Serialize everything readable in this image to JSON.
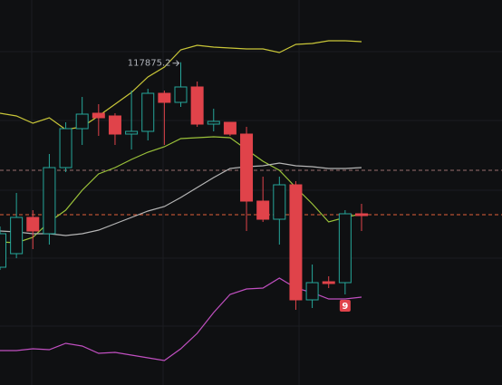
{
  "chart_data": {
    "type": "candlestick",
    "ylim": [
      113600,
      118700
    ],
    "up_color": "#26a69a",
    "down_color": "#e0434a",
    "open": [
      115160,
      115340,
      115820,
      115604,
      116480,
      116996,
      117200,
      117164,
      116924,
      116960,
      117464,
      117344,
      117548,
      117056,
      117080,
      116924,
      116036,
      115796,
      116252,
      114728,
      114968,
      114956,
      115868
    ],
    "high": [
      115700,
      116144,
      115916,
      116660,
      117080,
      117416,
      117320,
      117200,
      117500,
      117524,
      117500,
      117875.2,
      117620,
      117260,
      117080,
      117020,
      116360,
      116360,
      116300,
      115196,
      115040,
      115916,
      116000
    ],
    "low": [
      115124,
      115280,
      115400,
      115460,
      116420,
      116780,
      116900,
      116780,
      116720,
      116840,
      116780,
      117284,
      117020,
      116960,
      116900,
      115640,
      115760,
      115460,
      114596,
      114620,
      114884,
      114800,
      115640
    ],
    "close": [
      115604,
      115820,
      115640,
      116480,
      116996,
      117188,
      117140,
      116924,
      116960,
      117464,
      117344,
      117548,
      117056,
      117092,
      116924,
      116036,
      115796,
      116252,
      114728,
      114956,
      114944,
      115868,
      115844
    ],
    "lines": [
      {
        "color": "#c9c638",
        "values": [
          117200,
          117164,
          117068,
          117140,
          116984,
          117020,
          117164,
          117320,
          117476,
          117680,
          117812,
          118040,
          118100,
          118076,
          118064,
          118052,
          118052,
          118004,
          118112,
          118124,
          118160,
          118160,
          118148
        ]
      },
      {
        "color": "#9bc23a",
        "values": [
          115496,
          115484,
          115556,
          115760,
          115916,
          116180,
          116396,
          116480,
          116588,
          116684,
          116756,
          116864,
          116876,
          116888,
          116876,
          116720,
          116564,
          116444,
          116216,
          116000,
          115760,
          115820,
          115868
        ]
      },
      {
        "color": "#b5b5b5",
        "values": [
          115640,
          115628,
          115604,
          115604,
          115580,
          115604,
          115652,
          115736,
          115820,
          115904,
          115964,
          116084,
          116216,
          116348,
          116468,
          116492,
          116504,
          116540,
          116504,
          116492,
          116468,
          116468,
          116480
        ]
      },
      {
        "color": "#c04fc0",
        "values": [
          114056,
          114056,
          114080,
          114068,
          114152,
          114116,
          114020,
          114032,
          113996,
          113960,
          113924,
          114080,
          114284,
          114560,
          114800,
          114872,
          114884,
          115016,
          114884,
          114824,
          114740,
          114740,
          114764
        ]
      }
    ],
    "price_lines": [
      {
        "color": "#9a6e6e",
        "value": 116444
      },
      {
        "color": "#e0603a",
        "value": 115856
      }
    ],
    "high_label": "117875.2",
    "badge": "9"
  }
}
